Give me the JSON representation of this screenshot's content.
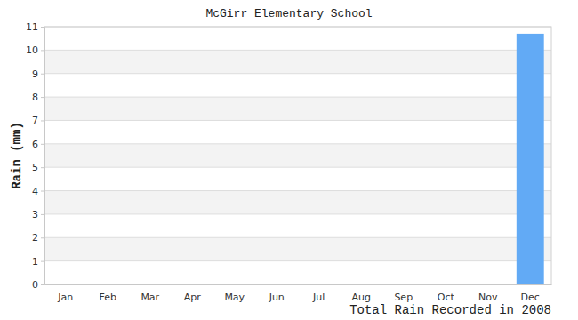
{
  "chart_data": {
    "type": "bar",
    "title": "McGirr Elementary School",
    "x_label": "Total Rain Recorded in 2008",
    "y_label": "Rain (mm)",
    "categories": [
      "Jan",
      "Feb",
      "Mar",
      "Apr",
      "May",
      "Jun",
      "Jul",
      "Aug",
      "Sep",
      "Oct",
      "Nov",
      "Dec"
    ],
    "values": [
      0,
      0,
      0,
      0,
      0,
      0,
      0,
      0,
      0,
      0,
      0,
      10.7
    ],
    "color": "#62aaf5",
    "ylim": [
      0,
      11
    ],
    "yticks": [
      0,
      1,
      2,
      3,
      4,
      5,
      6,
      7,
      8,
      9,
      10,
      11
    ],
    "grid": true
  }
}
